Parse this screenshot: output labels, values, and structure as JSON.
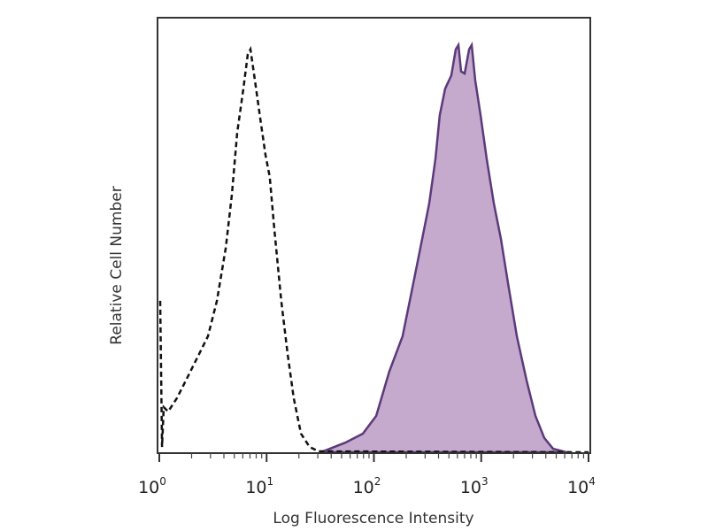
{
  "chart_data": {
    "type": "area",
    "title": "",
    "xlabel": "Log Fluorescence Intensity",
    "ylabel": "Relative Cell Number",
    "xscale": "log",
    "xlim": [
      1,
      10000
    ],
    "ylim": [
      0,
      100
    ],
    "grid": false,
    "legend": "none",
    "x_ticks": [
      {
        "base": "10",
        "exp": "0",
        "value": 1
      },
      {
        "base": "10",
        "exp": "1",
        "value": 10
      },
      {
        "base": "10",
        "exp": "2",
        "value": 100
      },
      {
        "base": "10",
        "exp": "3",
        "value": 1000
      },
      {
        "base": "10",
        "exp": "4",
        "value": 10000
      }
    ],
    "series": [
      {
        "style": "dashed-line",
        "color": "#111111",
        "x": [
          1.02,
          1.06,
          1.1,
          1.21,
          1.46,
          1.77,
          2.35,
          2.84,
          3.44,
          4.16,
          4.75,
          5.32,
          6.08,
          6.68,
          7.07,
          7.78,
          8.87,
          9.77,
          10.7,
          11.8,
          13.7,
          15.7,
          17.9,
          20.9,
          25.2,
          30.5,
          10000
        ],
        "y": [
          35,
          1.2,
          10.4,
          9.4,
          12.5,
          16.6,
          22.7,
          26.8,
          35,
          47.2,
          59.5,
          73.8,
          84,
          92,
          93.1,
          86,
          75.9,
          68.7,
          63.6,
          51.5,
          35,
          22.7,
          12.5,
          4.3,
          1.2,
          0.2,
          0
        ]
      },
      {
        "style": "filled",
        "color": "#5a3a7a",
        "fill": "#c6aacd",
        "x": [
          33.6,
          54,
          78.9,
          105,
          139,
          185,
          224,
          271,
          328,
          374,
          411,
          461,
          527,
          579,
          613,
          649,
          700,
          771,
          815,
          880,
          986,
          1127,
          1310,
          1526,
          1775,
          2147,
          2649,
          3200,
          3870,
          4680,
          6220
        ],
        "y": [
          0.2,
          2.2,
          4.3,
          8.4,
          18.6,
          26.8,
          37,
          47.2,
          57.5,
          67.7,
          77.9,
          84,
          87.1,
          93.1,
          94.1,
          88,
          87.5,
          93.1,
          94.1,
          85.9,
          77.9,
          67.7,
          57.5,
          49.3,
          39.1,
          26.8,
          16.6,
          8.4,
          3.3,
          0.8,
          0
        ]
      }
    ]
  }
}
